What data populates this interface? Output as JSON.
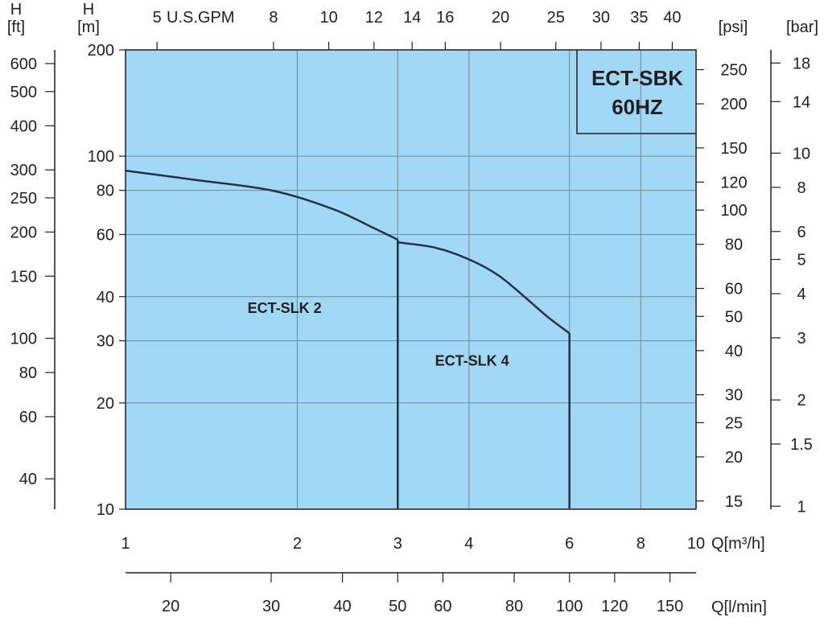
{
  "chart_data": {
    "type": "line",
    "title": "ECT-SBK\n60HZ",
    "title_lines": [
      "ECT-SBK",
      "60HZ"
    ],
    "xlabel": "Q[m³/h]",
    "x_scale": "log",
    "xlim": [
      1,
      10
    ],
    "ylim": [
      10,
      200
    ],
    "y_scale": "log",
    "grid": true,
    "background_color": "#a0d8f5",
    "line_color": "#2b2f45",
    "x_ticks": [
      1,
      2,
      3,
      4,
      6,
      8,
      10
    ],
    "x_tick_labels": [
      "1",
      "2",
      "3",
      "4",
      "6",
      "8",
      "10"
    ],
    "y_ticks": [
      10,
      20,
      30,
      40,
      60,
      80,
      100,
      200
    ],
    "y_tick_labels": [
      "10",
      "20",
      "30",
      "40",
      "60",
      "80",
      "100",
      "200"
    ],
    "axes": {
      "h_m": {
        "unit_top": "H",
        "unit_bottom": "[m]"
      },
      "h_ft": {
        "unit_top": "H",
        "unit_bottom": "[ft]",
        "ticks": [
          40,
          60,
          80,
          100,
          150,
          200,
          250,
          300,
          400,
          500,
          600
        ],
        "tick_labels": [
          "40",
          "60",
          "80",
          "100",
          "150",
          "200",
          "250",
          "300",
          "400",
          "500",
          "600"
        ]
      },
      "psi": {
        "unit": "[psi]",
        "ticks": [
          15,
          20,
          25,
          30,
          40,
          50,
          60,
          80,
          100,
          120,
          150,
          200,
          250
        ],
        "tick_labels": [
          "15",
          "20",
          "25",
          "30",
          "40",
          "50",
          "60",
          "80",
          "100",
          "120",
          "150",
          "200",
          "250"
        ]
      },
      "bar": {
        "unit": "[bar]",
        "ticks": [
          1,
          1.5,
          2,
          3,
          4,
          5,
          6,
          8,
          10,
          14,
          18
        ],
        "tick_labels": [
          "1",
          "1.5",
          "2",
          "3",
          "4",
          "5",
          "6",
          "8",
          "10",
          "14",
          "18"
        ]
      },
      "gpm": {
        "unit": "U.S.GPM",
        "ticks": [
          5,
          8,
          10,
          12,
          14,
          16,
          20,
          25,
          30,
          35,
          40
        ],
        "tick_labels": [
          "5",
          "8",
          "10",
          "12",
          "14",
          "16",
          "20",
          "25",
          "30",
          "35",
          "40"
        ]
      },
      "lmin": {
        "unit": "Q[l/min]",
        "ticks": [
          20,
          30,
          40,
          50,
          60,
          80,
          100,
          120,
          150
        ],
        "tick_labels": [
          "20",
          "30",
          "40",
          "50",
          "60",
          "80",
          "100",
          "120",
          "150"
        ]
      }
    },
    "series": [
      {
        "name": "ECT-SLK 2",
        "x": [
          1,
          1.3,
          1.8,
          2.3,
          2.7,
          3
        ],
        "y": [
          91,
          86,
          80,
          71,
          63,
          58
        ],
        "end_x": 3
      },
      {
        "name": "ECT-SLK 4",
        "x": [
          3,
          3.5,
          4,
          4.5,
          5,
          5.5,
          6
        ],
        "y": [
          57,
          55,
          51,
          46,
          40,
          35,
          31.5
        ],
        "end_x": 6
      }
    ],
    "annotations": [
      {
        "text": "ECT-SLK 2",
        "x": 1.9,
        "y": 36
      },
      {
        "text": "ECT-SLK 4",
        "x": 4.05,
        "y": 25.5
      }
    ]
  }
}
